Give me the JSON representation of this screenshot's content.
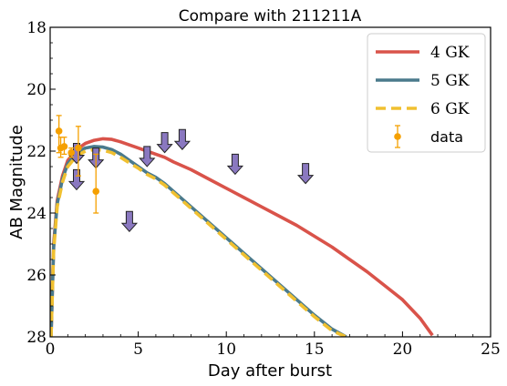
{
  "chart_data": {
    "type": "line",
    "title": "Compare with 211211A",
    "xlabel": "Day after burst",
    "ylabel": "AB Magnitude",
    "xlim": [
      0,
      25
    ],
    "ylim": [
      28,
      18
    ],
    "y_inverted": true,
    "xticks": [
      0,
      5,
      10,
      15,
      20,
      25
    ],
    "yticks": [
      18,
      20,
      22,
      24,
      26,
      28
    ],
    "grid": false,
    "legend_position": "top-right",
    "series": [
      {
        "name": "4 GK",
        "color": "#d9534a",
        "style": "solid",
        "x": [
          0.05,
          0.2,
          0.4,
          0.7,
          1.0,
          1.5,
          2.0,
          2.5,
          3.0,
          3.5,
          4.0,
          4.5,
          5.0,
          5.5,
          6.0,
          6.5,
          7.0,
          8.0,
          9.0,
          10.0,
          11.0,
          12.0,
          13.0,
          14.0,
          15.0,
          16.0,
          17.0,
          18.0,
          19.0,
          20.0,
          21.0,
          21.7
        ],
        "y": [
          28.0,
          25.0,
          23.6,
          22.8,
          22.3,
          21.95,
          21.75,
          21.65,
          21.6,
          21.62,
          21.7,
          21.8,
          21.9,
          22.0,
          22.1,
          22.2,
          22.35,
          22.6,
          22.9,
          23.2,
          23.5,
          23.8,
          24.1,
          24.4,
          24.75,
          25.1,
          25.5,
          25.9,
          26.35,
          26.8,
          27.4,
          27.95
        ]
      },
      {
        "name": "5 GK",
        "color": "#4a7a8c",
        "style": "solid",
        "x": [
          0.05,
          0.2,
          0.4,
          0.7,
          1.0,
          1.5,
          2.0,
          2.5,
          3.0,
          3.5,
          4.0,
          4.5,
          5.0,
          5.5,
          6.0,
          6.5,
          7.0,
          8.0,
          9.0,
          10.0,
          11.0,
          12.0,
          13.0,
          14.0,
          15.0,
          16.0,
          16.8
        ],
        "y": [
          28.0,
          25.1,
          23.7,
          22.9,
          22.4,
          22.05,
          21.9,
          21.85,
          21.87,
          21.95,
          22.1,
          22.3,
          22.5,
          22.7,
          22.85,
          23.05,
          23.3,
          23.8,
          24.3,
          24.8,
          25.3,
          25.8,
          26.3,
          26.8,
          27.3,
          27.75,
          28.0
        ]
      },
      {
        "name": "6 GK",
        "color": "#f0c030",
        "style": "dashed",
        "x": [
          0.05,
          0.2,
          0.4,
          0.7,
          1.0,
          1.5,
          2.0,
          2.5,
          3.0,
          3.5,
          4.0,
          4.5,
          5.0,
          5.5,
          6.0,
          6.5,
          7.0,
          8.0,
          9.0,
          10.0,
          11.0,
          12.0,
          13.0,
          14.0,
          15.0,
          16.0,
          16.8
        ],
        "y": [
          28.0,
          25.2,
          23.8,
          23.0,
          22.5,
          22.15,
          22.0,
          21.95,
          21.97,
          22.05,
          22.2,
          22.38,
          22.55,
          22.75,
          22.9,
          23.1,
          23.35,
          23.85,
          24.35,
          24.85,
          25.35,
          25.85,
          26.35,
          26.85,
          27.35,
          27.8,
          28.0
        ]
      }
    ],
    "data_points": {
      "name": "data",
      "color": "#f5a000",
      "points": [
        {
          "x": 0.5,
          "y": 21.35,
          "err_lo": 0.7,
          "err_hi": 0.5
        },
        {
          "x": 0.6,
          "y": 21.9,
          "err_lo": 0.3,
          "err_hi": 0.35
        },
        {
          "x": 0.8,
          "y": 21.85,
          "err_lo": 0.25,
          "err_hi": 0.3
        },
        {
          "x": 1.2,
          "y": 22.05,
          "err_lo": 0.15,
          "err_hi": 0.15
        },
        {
          "x": 1.6,
          "y": 21.9,
          "err_lo": 0.9,
          "err_hi": 0.7
        },
        {
          "x": 2.6,
          "y": 23.3,
          "err_lo": 0.7,
          "err_hi": 1.2
        }
      ]
    },
    "upper_limits": {
      "color": "#8a78c0",
      "points": [
        {
          "x": 1.5,
          "y": 21.75
        },
        {
          "x": 1.5,
          "y": 22.6
        },
        {
          "x": 2.6,
          "y": 21.9
        },
        {
          "x": 4.5,
          "y": 23.95
        },
        {
          "x": 5.5,
          "y": 21.85
        },
        {
          "x": 6.5,
          "y": 21.4
        },
        {
          "x": 7.5,
          "y": 21.3
        },
        {
          "x": 10.5,
          "y": 22.1
        },
        {
          "x": 14.5,
          "y": 22.4
        }
      ]
    },
    "legend": [
      {
        "label": "4 GK",
        "kind": "line",
        "series": 0
      },
      {
        "label": "5 GK",
        "kind": "line",
        "series": 1
      },
      {
        "label": "6 GK",
        "kind": "dashed",
        "series": 2
      },
      {
        "label": "data",
        "kind": "errorbar"
      }
    ]
  }
}
